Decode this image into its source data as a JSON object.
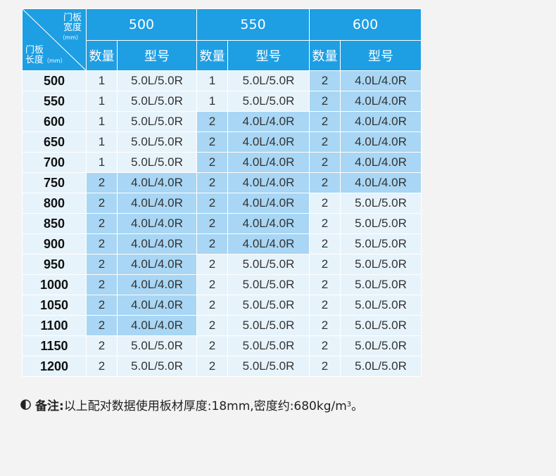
{
  "table": {
    "corner": {
      "width_label": "门板",
      "width_label2": "宽度",
      "width_unit": "（mm）",
      "length_label": "门板",
      "length_label2": "长度",
      "length_unit": "（mm）"
    },
    "widths": [
      "500",
      "550",
      "600"
    ],
    "sub_headers": {
      "qty": "数量",
      "model": "型号"
    },
    "rows": [
      {
        "length": "500",
        "cells": [
          [
            "1",
            "5.0L/5.0R"
          ],
          [
            "1",
            "5.0L/5.0R"
          ],
          [
            "2",
            "4.0L/4.0R"
          ]
        ]
      },
      {
        "length": "550",
        "cells": [
          [
            "1",
            "5.0L/5.0R"
          ],
          [
            "1",
            "5.0L/5.0R"
          ],
          [
            "2",
            "4.0L/4.0R"
          ]
        ]
      },
      {
        "length": "600",
        "cells": [
          [
            "1",
            "5.0L/5.0R"
          ],
          [
            "2",
            "4.0L/4.0R"
          ],
          [
            "2",
            "4.0L/4.0R"
          ]
        ]
      },
      {
        "length": "650",
        "cells": [
          [
            "1",
            "5.0L/5.0R"
          ],
          [
            "2",
            "4.0L/4.0R"
          ],
          [
            "2",
            "4.0L/4.0R"
          ]
        ]
      },
      {
        "length": "700",
        "cells": [
          [
            "1",
            "5.0L/5.0R"
          ],
          [
            "2",
            "4.0L/4.0R"
          ],
          [
            "2",
            "4.0L/4.0R"
          ]
        ]
      },
      {
        "length": "750",
        "cells": [
          [
            "2",
            "4.0L/4.0R"
          ],
          [
            "2",
            "4.0L/4.0R"
          ],
          [
            "2",
            "4.0L/4.0R"
          ]
        ]
      },
      {
        "length": "800",
        "cells": [
          [
            "2",
            "4.0L/4.0R"
          ],
          [
            "2",
            "4.0L/4.0R"
          ],
          [
            "2",
            "5.0L/5.0R"
          ]
        ]
      },
      {
        "length": "850",
        "cells": [
          [
            "2",
            "4.0L/4.0R"
          ],
          [
            "2",
            "4.0L/4.0R"
          ],
          [
            "2",
            "5.0L/5.0R"
          ]
        ]
      },
      {
        "length": "900",
        "cells": [
          [
            "2",
            "4.0L/4.0R"
          ],
          [
            "2",
            "4.0L/4.0R"
          ],
          [
            "2",
            "5.0L/5.0R"
          ]
        ]
      },
      {
        "length": "950",
        "cells": [
          [
            "2",
            "4.0L/4.0R"
          ],
          [
            "2",
            "5.0L/5.0R"
          ],
          [
            "2",
            "5.0L/5.0R"
          ]
        ]
      },
      {
        "length": "1000",
        "cells": [
          [
            "2",
            "4.0L/4.0R"
          ],
          [
            "2",
            "5.0L/5.0R"
          ],
          [
            "2",
            "5.0L/5.0R"
          ]
        ]
      },
      {
        "length": "1050",
        "cells": [
          [
            "2",
            "4.0L/4.0R"
          ],
          [
            "2",
            "5.0L/5.0R"
          ],
          [
            "2",
            "5.0L/5.0R"
          ]
        ]
      },
      {
        "length": "1100",
        "cells": [
          [
            "2",
            "4.0L/4.0R"
          ],
          [
            "2",
            "5.0L/5.0R"
          ],
          [
            "2",
            "5.0L/5.0R"
          ]
        ]
      },
      {
        "length": "1150",
        "cells": [
          [
            "2",
            "5.0L/5.0R"
          ],
          [
            "2",
            "5.0L/5.0R"
          ],
          [
            "2",
            "5.0L/5.0R"
          ]
        ]
      },
      {
        "length": "1200",
        "cells": [
          [
            "2",
            "5.0L/5.0R"
          ],
          [
            "2",
            "5.0L/5.0R"
          ],
          [
            "2",
            "5.0L/5.0R"
          ]
        ]
      }
    ]
  },
  "note": {
    "icon": "half-circle-icon",
    "label": "备注:",
    "text": "以上配对数据使用板材厚度:18mm,密度约:680kg/m",
    "superscript": "3",
    "end": "。"
  },
  "colors": {
    "header": "#1e9ee3",
    "light_cell": "#e7f3fb",
    "highlight_cell": "#a8d6f4",
    "background": "#f3f3f4"
  }
}
